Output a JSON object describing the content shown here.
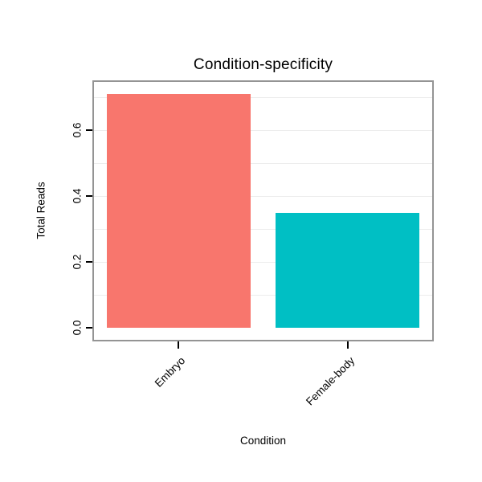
{
  "chart_data": {
    "type": "bar",
    "title": "Condition-specificity",
    "xlabel": "Condition",
    "ylabel": "Total Reads",
    "categories": [
      "Embryo",
      "Female-body"
    ],
    "values": [
      0.71,
      0.35
    ],
    "colors": [
      "#F8766D",
      "#00BFC4"
    ],
    "ylim": [
      0,
      0.75
    ],
    "y_display_range": [
      -0.036,
      0.746
    ],
    "yticks": [
      0.0,
      0.2,
      0.4,
      0.6
    ],
    "ytick_labels": [
      "0.0",
      "0.2",
      "0.4",
      "0.6"
    ],
    "gridline_step": 0.1,
    "grid": true,
    "grid_color": "#ececec",
    "panel_border_color": "#949494",
    "tick_color": "#000000",
    "background": "#ffffff",
    "legend": "none",
    "bar_width_fraction": 0.85
  }
}
